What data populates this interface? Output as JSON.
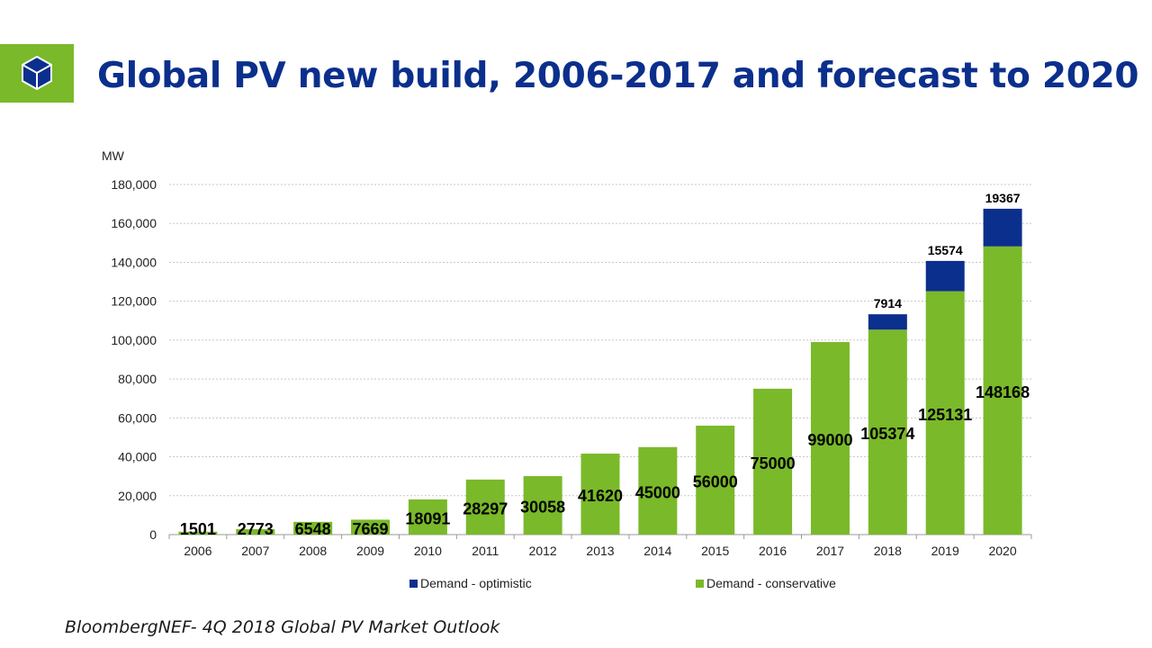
{
  "title": "Global PV new build, 2006-2017 and forecast to 2020",
  "source": "BloombergNEF- 4Q 2018 Global PV Market Outlook",
  "colors": {
    "brand_green": "#7ab929",
    "title_blue": "#0b2f8c",
    "conservative": "#7ab929",
    "optimistic": "#0b2f8c"
  },
  "icons": {
    "logo": "cube-logo-icon"
  },
  "chart_data": {
    "type": "bar",
    "stacked": true,
    "unit_label": "MW",
    "categories": [
      "2006",
      "2007",
      "2008",
      "2009",
      "2010",
      "2011",
      "2012",
      "2013",
      "2014",
      "2015",
      "2016",
      "2017",
      "2018",
      "2019",
      "2020"
    ],
    "series": [
      {
        "name": "Demand - conservative",
        "color": "#7ab929",
        "values": [
          1501,
          2773,
          6548,
          7669,
          18091,
          28297,
          30058,
          41620,
          45000,
          56000,
          75000,
          99000,
          105374,
          125131,
          148168
        ],
        "labels": [
          "1501",
          "2773",
          "6548",
          "7669",
          "18091",
          "28297",
          "30058",
          "41620",
          "45000",
          "56000",
          "75000",
          "99000",
          "105374",
          "125131",
          "148168"
        ]
      },
      {
        "name": "Demand - optimistic",
        "color": "#0b2f8c",
        "values": [
          0,
          0,
          0,
          0,
          0,
          0,
          0,
          0,
          0,
          0,
          0,
          0,
          7914,
          15574,
          19367
        ],
        "labels": [
          "",
          "",
          "",
          "",
          "",
          "",
          "",
          "",
          "",
          "",
          "",
          "",
          "7914",
          "15574",
          "19367"
        ]
      }
    ],
    "ylim": [
      0,
      180000
    ],
    "yticks": [
      0,
      20000,
      40000,
      60000,
      80000,
      100000,
      120000,
      140000,
      160000,
      180000
    ],
    "ytick_labels": [
      "0",
      "20,000",
      "40,000",
      "60,000",
      "80,000",
      "100,000",
      "120,000",
      "140,000",
      "160,000",
      "180,000"
    ],
    "grid": true,
    "legend_position": "bottom",
    "legend": [
      {
        "name": "Demand - optimistic",
        "color": "#0b2f8c"
      },
      {
        "name": "Demand - conservative",
        "color": "#7ab929"
      }
    ]
  }
}
